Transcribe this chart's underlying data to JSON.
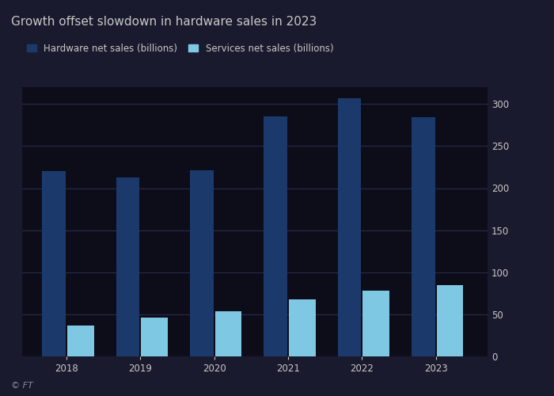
{
  "title": "Growth offset slowdown in hardware sales in 2023",
  "years": [
    2018,
    2019,
    2020,
    2021,
    2022,
    2023
  ],
  "hardware_sales": [
    220,
    213,
    221,
    285,
    307,
    284
  ],
  "services_sales": [
    37,
    46,
    54,
    68,
    78,
    85
  ],
  "hardware_color": "#1b3a6b",
  "services_color": "#7ec8e3",
  "legend_hardware": "Hardware net sales (billions)",
  "legend_services": "Services net sales (billions)",
  "ylim": [
    0,
    320
  ],
  "yticks": [
    0,
    50,
    100,
    150,
    200,
    250,
    300
  ],
  "background_color": "#1a1a2e",
  "plot_bg_color": "#0d0d1a",
  "grid_color": "#2a2a4a",
  "text_color": "#c8c8c8",
  "title_fontsize": 11,
  "axis_fontsize": 8.5,
  "legend_fontsize": 8.5,
  "hw_bar_width": 0.32,
  "svc_bar_width": 0.36,
  "ft_label": "© FT"
}
